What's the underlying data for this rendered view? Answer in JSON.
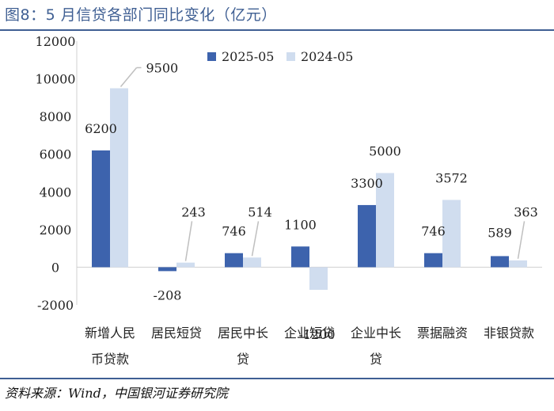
{
  "title": "图8：5 月信贷各部门同比变化（亿元）",
  "source": "资料来源：Wind，中国银河证券研究院",
  "colors": {
    "series_2025": "#3d63ad",
    "series_2024": "#d0ddef",
    "title": "#3f5f93",
    "leader": "#bfbfbf"
  },
  "chart_data": {
    "type": "bar",
    "title": "5 月信贷各部门同比变化（亿元）",
    "xlabel": "",
    "ylabel": "",
    "ylim": [
      -2000,
      12000
    ],
    "yticks": [
      "12000",
      "10000",
      "8000",
      "6000",
      "4000",
      "2000",
      "0",
      "-2000"
    ],
    "categories": [
      [
        "新增人民",
        "币贷款"
      ],
      [
        "居民短贷"
      ],
      [
        "居民中长",
        "贷"
      ],
      [
        "企业短贷"
      ],
      [
        "企业中长",
        "贷"
      ],
      [
        "票据融资"
      ],
      [
        "非银贷款"
      ]
    ],
    "series": [
      {
        "name": "2025-05",
        "values": [
          6200,
          -208,
          746,
          1100,
          3300,
          746,
          589
        ],
        "labels": [
          "6200",
          "-208",
          "746",
          "1100",
          "3300",
          "746",
          "589"
        ]
      },
      {
        "name": "2024-05",
        "values": [
          9500,
          243,
          514,
          -1200,
          5000,
          3572,
          363
        ],
        "labels": [
          "9500",
          "243",
          "514",
          "-1200",
          "5000",
          "3572",
          "363"
        ]
      }
    ],
    "legend_position": "top-right",
    "grid": false
  }
}
